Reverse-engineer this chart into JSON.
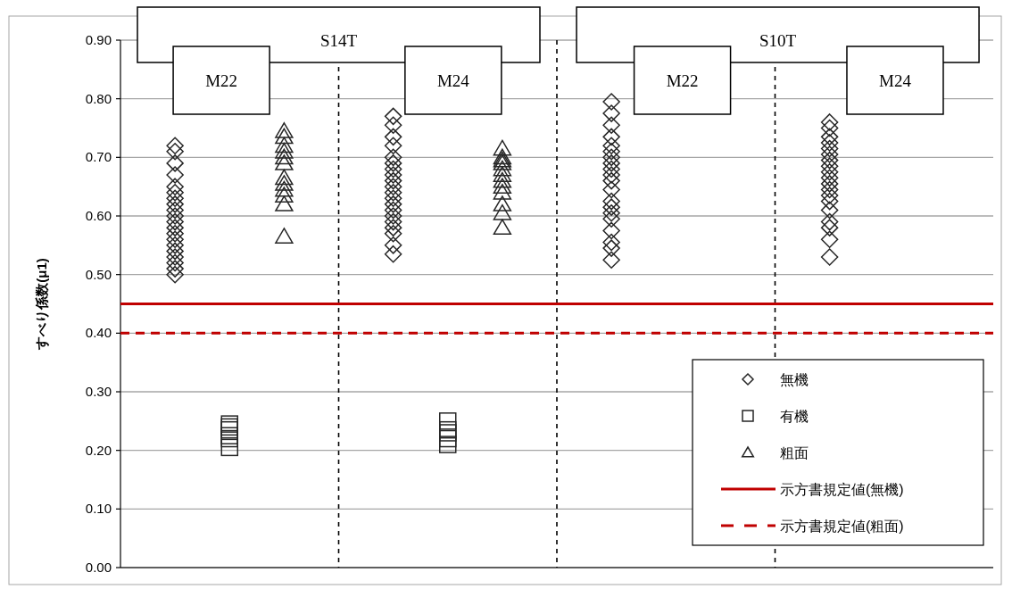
{
  "chart_data": {
    "type": "scatter",
    "ylabel": "すべり係数(μ1)",
    "categories": [
      null,
      null,
      null,
      null,
      null,
      null,
      null,
      null,
      null,
      null,
      null,
      null,
      null,
      null,
      null
    ],
    "ylim": [
      0,
      0.9
    ],
    "yticks": [
      {
        "value": 0,
        "label": "0.00"
      },
      {
        "value": 0.1,
        "label": "0.10"
      },
      {
        "value": 0.2,
        "label": "0.20"
      },
      {
        "value": 0.3,
        "label": "0.30"
      },
      {
        "value": 0.4,
        "label": "0.40"
      },
      {
        "value": 0.5,
        "label": "0.50"
      },
      {
        "value": 0.6,
        "label": "0.60"
      },
      {
        "value": 0.7,
        "label": "0.70"
      },
      {
        "value": 0.8,
        "label": "0.80"
      },
      {
        "value": 0.9,
        "label": "0.90"
      }
    ],
    "grid": "y",
    "legend": "bottom right",
    "series": [
      {
        "name": "無機",
        "color": "#262626",
        "marker": "diamond",
        "values": [
          0.5,
          null,
          null,
          null,
          0.535,
          null,
          null,
          null,
          0.525,
          null,
          null,
          null,
          0.53,
          null,
          null
        ]
      },
      {
        "color": "#262626",
        "marker": "diamond",
        "values": [
          0.51,
          null,
          null,
          null,
          0.55,
          null,
          null,
          null,
          0.545,
          null,
          null,
          null,
          0.56,
          null,
          null
        ]
      },
      {
        "color": "#262626",
        "marker": "diamond",
        "values": [
          0.52,
          null,
          null,
          null,
          0.57,
          null,
          null,
          null,
          0.555,
          null,
          null,
          null,
          0.58,
          null,
          null
        ]
      },
      {
        "color": "#262626",
        "marker": "diamond",
        "values": [
          0.53,
          null,
          null,
          null,
          0.58,
          null,
          null,
          null,
          0.575,
          null,
          null,
          null,
          0.59,
          null,
          null
        ]
      },
      {
        "color": "#262626",
        "marker": "diamond",
        "values": [
          0.54,
          null,
          null,
          null,
          0.59,
          null,
          null,
          null,
          0.595,
          null,
          null,
          null,
          0.61,
          null,
          null
        ]
      },
      {
        "color": "#262626",
        "marker": "diamond",
        "values": [
          0.55,
          null,
          null,
          null,
          0.6,
          null,
          null,
          null,
          0.605,
          null,
          null,
          null,
          0.625,
          null,
          null
        ]
      },
      {
        "color": "#262626",
        "marker": "diamond",
        "values": [
          0.56,
          null,
          null,
          null,
          0.61,
          null,
          null,
          null,
          0.615,
          null,
          null,
          null,
          0.635,
          null,
          null
        ]
      },
      {
        "color": "#262626",
        "marker": "diamond",
        "values": [
          0.57,
          null,
          null,
          null,
          0.62,
          null,
          null,
          null,
          0.625,
          null,
          null,
          null,
          0.645,
          null,
          null
        ]
      },
      {
        "color": "#262626",
        "marker": "diamond",
        "values": [
          0.58,
          null,
          null,
          null,
          0.63,
          null,
          null,
          null,
          0.645,
          null,
          null,
          null,
          0.655,
          null,
          null
        ]
      },
      {
        "color": "#262626",
        "marker": "diamond",
        "values": [
          0.59,
          null,
          null,
          null,
          0.64,
          null,
          null,
          null,
          0.66,
          null,
          null,
          null,
          0.665,
          null,
          null
        ]
      },
      {
        "color": "#262626",
        "marker": "diamond",
        "values": [
          0.6,
          null,
          null,
          null,
          0.65,
          null,
          null,
          null,
          0.67,
          null,
          null,
          null,
          0.675,
          null,
          null
        ]
      },
      {
        "color": "#262626",
        "marker": "diamond",
        "values": [
          0.61,
          null,
          null,
          null,
          0.66,
          null,
          null,
          null,
          0.68,
          null,
          null,
          null,
          0.685,
          null,
          null
        ]
      },
      {
        "color": "#262626",
        "marker": "diamond",
        "values": [
          0.62,
          null,
          null,
          null,
          0.67,
          null,
          null,
          null,
          0.69,
          null,
          null,
          null,
          0.695,
          null,
          null
        ]
      },
      {
        "color": "#262626",
        "marker": "diamond",
        "values": [
          0.63,
          null,
          null,
          null,
          0.68,
          null,
          null,
          null,
          0.7,
          null,
          null,
          null,
          0.705,
          null,
          null
        ]
      },
      {
        "color": "#262626",
        "marker": "diamond",
        "values": [
          0.64,
          null,
          null,
          null,
          0.69,
          null,
          null,
          null,
          0.71,
          null,
          null,
          null,
          0.715,
          null,
          null
        ]
      },
      {
        "color": "#262626",
        "marker": "diamond",
        "values": [
          0.65,
          null,
          null,
          null,
          0.7,
          null,
          null,
          null,
          0.72,
          null,
          null,
          null,
          0.725,
          null,
          null
        ]
      },
      {
        "color": "#262626",
        "marker": "diamond",
        "values": [
          0.67,
          null,
          null,
          null,
          0.72,
          null,
          null,
          null,
          0.735,
          null,
          null,
          null,
          0.735,
          null,
          null
        ]
      },
      {
        "color": "#262626",
        "marker": "diamond",
        "values": [
          0.69,
          null,
          null,
          null,
          0.735,
          null,
          null,
          null,
          0.755,
          null,
          null,
          null,
          0.75,
          null,
          null
        ]
      },
      {
        "color": "#262626",
        "marker": "diamond",
        "values": [
          0.71,
          null,
          null,
          null,
          0.755,
          null,
          null,
          null,
          0.775,
          null,
          null,
          null,
          0.76,
          null,
          null
        ]
      },
      {
        "color": "#262626",
        "marker": "diamond",
        "values": [
          0.72,
          null,
          null,
          null,
          0.77,
          null,
          null,
          null,
          0.795,
          null,
          null,
          null,
          null,
          null,
          null
        ]
      },
      {
        "name": "有機",
        "color": "#262626",
        "marker": "square",
        "values": [
          null,
          0.205,
          null,
          null,
          null,
          0.21,
          null,
          null,
          null,
          null,
          null,
          null,
          null,
          null,
          null
        ]
      },
      {
        "color": "#262626",
        "marker": "square",
        "values": [
          null,
          0.22,
          null,
          null,
          null,
          0.22,
          null,
          null,
          null,
          null,
          null,
          null,
          null,
          null,
          null
        ]
      },
      {
        "color": "#262626",
        "marker": "square",
        "values": [
          null,
          0.225,
          null,
          null,
          null,
          0.23,
          null,
          null,
          null,
          null,
          null,
          null,
          null,
          null,
          null
        ]
      },
      {
        "color": "#262626",
        "marker": "square",
        "values": [
          null,
          0.235,
          null,
          null,
          null,
          0.235,
          null,
          null,
          null,
          null,
          null,
          null,
          null,
          null,
          null
        ]
      },
      {
        "color": "#262626",
        "marker": "square",
        "values": [
          null,
          0.24,
          null,
          null,
          null,
          0.25,
          null,
          null,
          null,
          null,
          null,
          null,
          null,
          null,
          null
        ]
      },
      {
        "color": "#262626",
        "marker": "square",
        "values": [
          null,
          0.245,
          null,
          null,
          null,
          null,
          null,
          null,
          null,
          null,
          null,
          null,
          null,
          null,
          null
        ]
      },
      {
        "name": "粗面",
        "color": "#262626",
        "marker": "triangle",
        "values": [
          null,
          null,
          0.565,
          null,
          null,
          null,
          0.58,
          null,
          null,
          null,
          null,
          null,
          null,
          null,
          null
        ]
      },
      {
        "color": "#262626",
        "marker": "triangle",
        "values": [
          null,
          null,
          0.62,
          null,
          null,
          null,
          0.605,
          null,
          null,
          null,
          null,
          null,
          null,
          null,
          null
        ]
      },
      {
        "color": "#262626",
        "marker": "triangle",
        "values": [
          null,
          null,
          0.635,
          null,
          null,
          null,
          0.62,
          null,
          null,
          null,
          null,
          null,
          null,
          null,
          null
        ]
      },
      {
        "color": "#262626",
        "marker": "triangle",
        "values": [
          null,
          null,
          0.645,
          null,
          null,
          null,
          0.64,
          null,
          null,
          null,
          null,
          null,
          null,
          null,
          null
        ]
      },
      {
        "color": "#262626",
        "marker": "triangle",
        "values": [
          null,
          null,
          0.655,
          null,
          null,
          null,
          0.65,
          null,
          null,
          null,
          null,
          null,
          null,
          null,
          null
        ]
      },
      {
        "color": "#262626",
        "marker": "triangle",
        "values": [
          null,
          null,
          0.665,
          null,
          null,
          null,
          0.66,
          null,
          null,
          null,
          null,
          null,
          null,
          null,
          null
        ]
      },
      {
        "color": "#262626",
        "marker": "triangle",
        "values": [
          null,
          null,
          0.69,
          null,
          null,
          null,
          0.67,
          null,
          null,
          null,
          null,
          null,
          null,
          null,
          null
        ]
      },
      {
        "color": "#262626",
        "marker": "triangle",
        "values": [
          null,
          null,
          0.7,
          null,
          null,
          null,
          0.68,
          null,
          null,
          null,
          null,
          null,
          null,
          null,
          null
        ]
      },
      {
        "color": "#262626",
        "marker": "triangle",
        "values": [
          null,
          null,
          0.71,
          null,
          null,
          null,
          0.69,
          null,
          null,
          null,
          null,
          null,
          null,
          null,
          null
        ]
      },
      {
        "color": "#262626",
        "marker": "triangle",
        "values": [
          null,
          null,
          0.72,
          null,
          null,
          null,
          0.695,
          null,
          null,
          null,
          null,
          null,
          null,
          null,
          null
        ]
      },
      {
        "color": "#262626",
        "marker": "triangle",
        "values": [
          null,
          null,
          0.735,
          null,
          null,
          null,
          0.7,
          null,
          null,
          null,
          null,
          null,
          null,
          null,
          null
        ]
      },
      {
        "color": "#262626",
        "marker": "triangle",
        "values": [
          null,
          null,
          0.745,
          null,
          null,
          null,
          0.715,
          null,
          null,
          null,
          null,
          null,
          null,
          null,
          null
        ]
      }
    ],
    "ref_lines": [
      {
        "axis": "y",
        "value": 0.45,
        "label": "示方書規定値(無機)",
        "color": "#c00000",
        "line_style": "solid"
      },
      {
        "axis": "y",
        "value": 0.4,
        "label": "示方書規定値(粗面)",
        "color": "#c00000",
        "line_style": "dashed"
      }
    ],
    "annotations": [
      "S14T",
      "M22",
      "M24",
      "S10T",
      "M22",
      "M24"
    ]
  }
}
